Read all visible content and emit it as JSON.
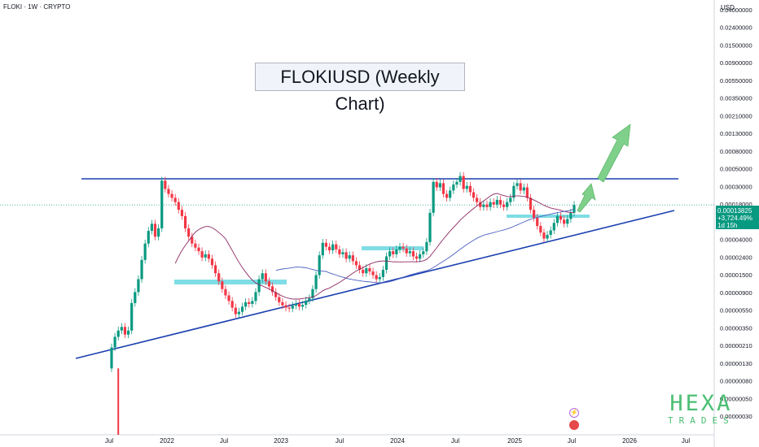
{
  "header": {
    "ticker": "FLOKI · 1W · CRYPTO",
    "currency": "USD"
  },
  "annotation": {
    "title": "FLOKIUSD (Weekly Chart)"
  },
  "price_label": {
    "price": "0.00013825",
    "change": "+3,724.49%",
    "countdown": "1d 15h"
  },
  "logo": {
    "big": "HEXA",
    "small": "TRADES"
  },
  "colors": {
    "up": "#089981",
    "down": "#f23645",
    "trendline": "#1a3fb0",
    "arrow": "#7fd08a",
    "zone": "#7fdde5",
    "ma_fast": "#8e2a64",
    "ma_slow": "#4a5fc1"
  },
  "chart_data": {
    "type": "candlestick",
    "scale": "log",
    "y_axis_ticks": [
      "0.04000000",
      "0.02400000",
      "0.01500000",
      "0.00900000",
      "0.00550000",
      "0.00350000",
      "0.00210000",
      "0.00130000",
      "0.00080000",
      "0.00050000",
      "0.00030000",
      "0.00018000",
      "0.00007000",
      "0.00004000",
      "0.00002400",
      "0.00001500",
      "0.00000900",
      "0.00000550",
      "0.00000350",
      "0.00000210",
      "0.00000130",
      "0.00000080",
      "0.00000050",
      "0.00000030"
    ],
    "x_axis_ticks": [
      "Jul",
      "2022",
      "Jul",
      "2023",
      "Jul",
      "2024",
      "Jul",
      "2025",
      "Jul",
      "2026",
      "Jul"
    ],
    "last_price": 0.00013825,
    "candles": [
      [
        1.2e-06,
        2.2e-06
      ],
      [
        2.2e-06,
        3e-06
      ],
      [
        3e-06,
        3.6e-06
      ],
      [
        3.6e-06,
        4e-06
      ],
      [
        4e-06,
        3.2e-06
      ],
      [
        3.2e-06,
        3.6e-06
      ],
      [
        3.6e-06,
        8e-06
      ],
      [
        8e-06,
        1.1e-05
      ],
      [
        1.1e-05,
        1.6e-05
      ],
      [
        1.6e-05,
        2.8e-05
      ],
      [
        2.8e-05,
        4.5e-05
      ],
      [
        4.5e-05,
        6.5e-05
      ],
      [
        6.5e-05,
        8e-05
      ],
      [
        8e-05,
        5.5e-05
      ],
      [
        5.5e-05,
        7e-05
      ],
      [
        7e-05,
        0.00028
      ],
      [
        0.00028,
        0.00022
      ],
      [
        0.00022,
        0.00019
      ],
      [
        0.00019,
        0.00017
      ],
      [
        0.00017,
        0.00015
      ],
      [
        0.00015,
        0.00012
      ],
      [
        0.00012,
        0.0001
      ],
      [
        0.0001,
        7e-05
      ],
      [
        7e-05,
        5.5e-05
      ],
      [
        5.5e-05,
        4.5e-05
      ],
      [
        4.5e-05,
        4e-05
      ],
      [
        4e-05,
        3.6e-05
      ],
      [
        3.6e-05,
        3e-05
      ],
      [
        3e-05,
        3.3e-05
      ],
      [
        3.3e-05,
        2.9e-05
      ],
      [
        2.9e-05,
        2.4e-05
      ],
      [
        2.4e-05,
        1.9e-05
      ],
      [
        1.9e-05,
        1.5e-05
      ],
      [
        1.5e-05,
        1.2e-05
      ],
      [
        1.2e-05,
        1e-05
      ],
      [
        1e-05,
        8.5e-06
      ],
      [
        8.5e-06,
        7e-06
      ],
      [
        7e-06,
        5.8e-06
      ],
      [
        5.8e-06,
        6.2e-06
      ],
      [
        6.2e-06,
        7.2e-06
      ],
      [
        7.2e-06,
        8.2e-06
      ],
      [
        8.2e-06,
        7.8e-06
      ],
      [
        7.8e-06,
        8.5e-06
      ],
      [
        8.5e-06,
        1.1e-05
      ],
      [
        1.1e-05,
        1.6e-05
      ],
      [
        1.6e-05,
        1.9e-05
      ],
      [
        1.9e-05,
        1.5e-05
      ],
      [
        1.5e-05,
        1.3e-05
      ],
      [
        1.3e-05,
        1.1e-05
      ],
      [
        1.1e-05,
        9.5e-06
      ],
      [
        9.5e-06,
        8.2e-06
      ],
      [
        8.2e-06,
        7.5e-06
      ],
      [
        7.5e-06,
        7e-06
      ],
      [
        7e-06,
        6.8e-06
      ],
      [
        6.8e-06,
        7.4e-06
      ],
      [
        7.4e-06,
        7.8e-06
      ],
      [
        7.8e-06,
        7.2e-06
      ],
      [
        7.2e-06,
        7.6e-06
      ],
      [
        7.6e-06,
        8.6e-06
      ],
      [
        8.6e-06,
        9.2e-06
      ],
      [
        9.2e-06,
        1.2e-05
      ],
      [
        1.2e-05,
        1.8e-05
      ],
      [
        1.8e-05,
        3.2e-05
      ],
      [
        3.2e-05,
        4.6e-05
      ],
      [
        4.6e-05,
        4.1e-05
      ],
      [
        4.1e-05,
        3.7e-05
      ],
      [
        3.7e-05,
        4.4e-05
      ],
      [
        4.4e-05,
        3.8e-05
      ],
      [
        3.8e-05,
        3.3e-05
      ],
      [
        3.3e-05,
        3.5e-05
      ],
      [
        3.5e-05,
        2.9e-05
      ],
      [
        2.9e-05,
        3.2e-05
      ],
      [
        3.2e-05,
        2.7e-05
      ],
      [
        2.7e-05,
        2.4e-05
      ],
      [
        2.4e-05,
        2.1e-05
      ],
      [
        2.1e-05,
        1.9e-05
      ],
      [
        1.9e-05,
        2.2e-05
      ],
      [
        2.2e-05,
        2e-05
      ],
      [
        2e-05,
        1.8e-05
      ],
      [
        1.8e-05,
        1.6e-05
      ],
      [
        1.6e-05,
        1.7e-05
      ],
      [
        1.7e-05,
        2.1e-05
      ],
      [
        2.1e-05,
        3.1e-05
      ],
      [
        3.1e-05,
        3.6e-05
      ],
      [
        3.6e-05,
        3.3e-05
      ],
      [
        3.3e-05,
        3.8e-05
      ],
      [
        3.8e-05,
        4.1e-05
      ],
      [
        4.1e-05,
        3.9e-05
      ],
      [
        3.9e-05,
        3.4e-05
      ],
      [
        3.4e-05,
        3.6e-05
      ],
      [
        3.6e-05,
        3.1e-05
      ],
      [
        3.1e-05,
        2.9e-05
      ],
      [
        2.9e-05,
        3.3e-05
      ],
      [
        3.3e-05,
        3.6e-05
      ],
      [
        3.6e-05,
        4.7e-05
      ],
      [
        4.7e-05,
        0.00011
      ],
      [
        0.00011,
        0.00027
      ],
      [
        0.00027,
        0.00023
      ],
      [
        0.00023,
        0.00026
      ],
      [
        0.00026,
        0.00019
      ],
      [
        0.00019,
        0.00017
      ],
      [
        0.00017,
        0.00021
      ],
      [
        0.00021,
        0.00025
      ],
      [
        0.00025,
        0.00027
      ],
      [
        0.00027,
        0.00032
      ],
      [
        0.00032,
        0.00022
      ],
      [
        0.00022,
        0.00024
      ],
      [
        0.00024,
        0.0002
      ],
      [
        0.0002,
        0.00017
      ],
      [
        0.00017,
        0.00015
      ],
      [
        0.00015,
        0.00013
      ],
      [
        0.00013,
        0.00014
      ],
      [
        0.00014,
        0.00013
      ],
      [
        0.00013,
        0.00015
      ],
      [
        0.00015,
        0.00014
      ],
      [
        0.00014,
        0.00016
      ],
      [
        0.00016,
        0.00014
      ],
      [
        0.00014,
        0.00013
      ],
      [
        0.00013,
        0.00015
      ],
      [
        0.00015,
        0.00017
      ],
      [
        0.00017,
        0.00024
      ],
      [
        0.00024,
        0.00026
      ],
      [
        0.00026,
        0.00021
      ],
      [
        0.00021,
        0.00023
      ],
      [
        0.00023,
        0.00017
      ],
      [
        0.00017,
        0.00012
      ],
      [
        0.00012,
        9.5e-05
      ],
      [
        9.5e-05,
        7.5e-05
      ],
      [
        7.5e-05,
        6.2e-05
      ],
      [
        6.2e-05,
        5.2e-05
      ],
      [
        5.2e-05,
        5.8e-05
      ],
      [
        5.8e-05,
        6.6e-05
      ],
      [
        6.6e-05,
        8.2e-05
      ],
      [
        8.2e-05,
        0.0001
      ],
      [
        0.0001,
        9e-05
      ],
      [
        9e-05,
        8e-05
      ],
      [
        8e-05,
        9.2e-05
      ],
      [
        9.2e-05,
        0.00011
      ],
      [
        0.00011,
        0.00013825
      ]
    ]
  }
}
